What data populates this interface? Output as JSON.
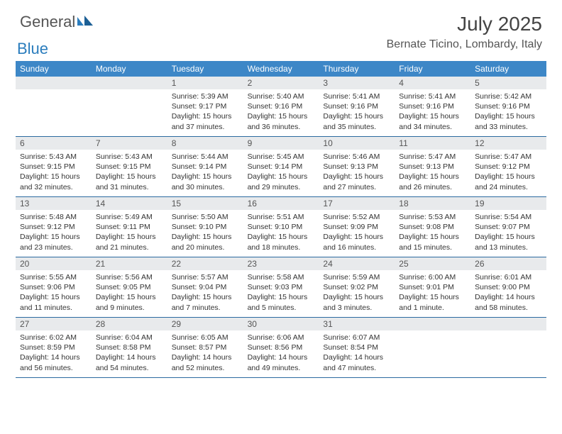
{
  "brand": {
    "word1": "General",
    "word2": "Blue"
  },
  "title": {
    "month": "July 2025",
    "location": "Bernate Ticino, Lombardy, Italy"
  },
  "colors": {
    "header_bg": "#3d87c7",
    "row_border": "#2b6aa0",
    "daynum_bg": "#e8eaec",
    "logo_gray": "#555555",
    "logo_blue": "#2b7dbd"
  },
  "dow": [
    "Sunday",
    "Monday",
    "Tuesday",
    "Wednesday",
    "Thursday",
    "Friday",
    "Saturday"
  ],
  "weeks": [
    [
      {
        "n": "",
        "body": []
      },
      {
        "n": "",
        "body": []
      },
      {
        "n": "1",
        "body": [
          "Sunrise: 5:39 AM",
          "Sunset: 9:17 PM",
          "Daylight: 15 hours and 37 minutes."
        ]
      },
      {
        "n": "2",
        "body": [
          "Sunrise: 5:40 AM",
          "Sunset: 9:16 PM",
          "Daylight: 15 hours and 36 minutes."
        ]
      },
      {
        "n": "3",
        "body": [
          "Sunrise: 5:41 AM",
          "Sunset: 9:16 PM",
          "Daylight: 15 hours and 35 minutes."
        ]
      },
      {
        "n": "4",
        "body": [
          "Sunrise: 5:41 AM",
          "Sunset: 9:16 PM",
          "Daylight: 15 hours and 34 minutes."
        ]
      },
      {
        "n": "5",
        "body": [
          "Sunrise: 5:42 AM",
          "Sunset: 9:16 PM",
          "Daylight: 15 hours and 33 minutes."
        ]
      }
    ],
    [
      {
        "n": "6",
        "body": [
          "Sunrise: 5:43 AM",
          "Sunset: 9:15 PM",
          "Daylight: 15 hours and 32 minutes."
        ]
      },
      {
        "n": "7",
        "body": [
          "Sunrise: 5:43 AM",
          "Sunset: 9:15 PM",
          "Daylight: 15 hours and 31 minutes."
        ]
      },
      {
        "n": "8",
        "body": [
          "Sunrise: 5:44 AM",
          "Sunset: 9:14 PM",
          "Daylight: 15 hours and 30 minutes."
        ]
      },
      {
        "n": "9",
        "body": [
          "Sunrise: 5:45 AM",
          "Sunset: 9:14 PM",
          "Daylight: 15 hours and 29 minutes."
        ]
      },
      {
        "n": "10",
        "body": [
          "Sunrise: 5:46 AM",
          "Sunset: 9:13 PM",
          "Daylight: 15 hours and 27 minutes."
        ]
      },
      {
        "n": "11",
        "body": [
          "Sunrise: 5:47 AM",
          "Sunset: 9:13 PM",
          "Daylight: 15 hours and 26 minutes."
        ]
      },
      {
        "n": "12",
        "body": [
          "Sunrise: 5:47 AM",
          "Sunset: 9:12 PM",
          "Daylight: 15 hours and 24 minutes."
        ]
      }
    ],
    [
      {
        "n": "13",
        "body": [
          "Sunrise: 5:48 AM",
          "Sunset: 9:12 PM",
          "Daylight: 15 hours and 23 minutes."
        ]
      },
      {
        "n": "14",
        "body": [
          "Sunrise: 5:49 AM",
          "Sunset: 9:11 PM",
          "Daylight: 15 hours and 21 minutes."
        ]
      },
      {
        "n": "15",
        "body": [
          "Sunrise: 5:50 AM",
          "Sunset: 9:10 PM",
          "Daylight: 15 hours and 20 minutes."
        ]
      },
      {
        "n": "16",
        "body": [
          "Sunrise: 5:51 AM",
          "Sunset: 9:10 PM",
          "Daylight: 15 hours and 18 minutes."
        ]
      },
      {
        "n": "17",
        "body": [
          "Sunrise: 5:52 AM",
          "Sunset: 9:09 PM",
          "Daylight: 15 hours and 16 minutes."
        ]
      },
      {
        "n": "18",
        "body": [
          "Sunrise: 5:53 AM",
          "Sunset: 9:08 PM",
          "Daylight: 15 hours and 15 minutes."
        ]
      },
      {
        "n": "19",
        "body": [
          "Sunrise: 5:54 AM",
          "Sunset: 9:07 PM",
          "Daylight: 15 hours and 13 minutes."
        ]
      }
    ],
    [
      {
        "n": "20",
        "body": [
          "Sunrise: 5:55 AM",
          "Sunset: 9:06 PM",
          "Daylight: 15 hours and 11 minutes."
        ]
      },
      {
        "n": "21",
        "body": [
          "Sunrise: 5:56 AM",
          "Sunset: 9:05 PM",
          "Daylight: 15 hours and 9 minutes."
        ]
      },
      {
        "n": "22",
        "body": [
          "Sunrise: 5:57 AM",
          "Sunset: 9:04 PM",
          "Daylight: 15 hours and 7 minutes."
        ]
      },
      {
        "n": "23",
        "body": [
          "Sunrise: 5:58 AM",
          "Sunset: 9:03 PM",
          "Daylight: 15 hours and 5 minutes."
        ]
      },
      {
        "n": "24",
        "body": [
          "Sunrise: 5:59 AM",
          "Sunset: 9:02 PM",
          "Daylight: 15 hours and 3 minutes."
        ]
      },
      {
        "n": "25",
        "body": [
          "Sunrise: 6:00 AM",
          "Sunset: 9:01 PM",
          "Daylight: 15 hours and 1 minute."
        ]
      },
      {
        "n": "26",
        "body": [
          "Sunrise: 6:01 AM",
          "Sunset: 9:00 PM",
          "Daylight: 14 hours and 58 minutes."
        ]
      }
    ],
    [
      {
        "n": "27",
        "body": [
          "Sunrise: 6:02 AM",
          "Sunset: 8:59 PM",
          "Daylight: 14 hours and 56 minutes."
        ]
      },
      {
        "n": "28",
        "body": [
          "Sunrise: 6:04 AM",
          "Sunset: 8:58 PM",
          "Daylight: 14 hours and 54 minutes."
        ]
      },
      {
        "n": "29",
        "body": [
          "Sunrise: 6:05 AM",
          "Sunset: 8:57 PM",
          "Daylight: 14 hours and 52 minutes."
        ]
      },
      {
        "n": "30",
        "body": [
          "Sunrise: 6:06 AM",
          "Sunset: 8:56 PM",
          "Daylight: 14 hours and 49 minutes."
        ]
      },
      {
        "n": "31",
        "body": [
          "Sunrise: 6:07 AM",
          "Sunset: 8:54 PM",
          "Daylight: 14 hours and 47 minutes."
        ]
      },
      {
        "n": "",
        "body": []
      },
      {
        "n": "",
        "body": []
      }
    ]
  ]
}
